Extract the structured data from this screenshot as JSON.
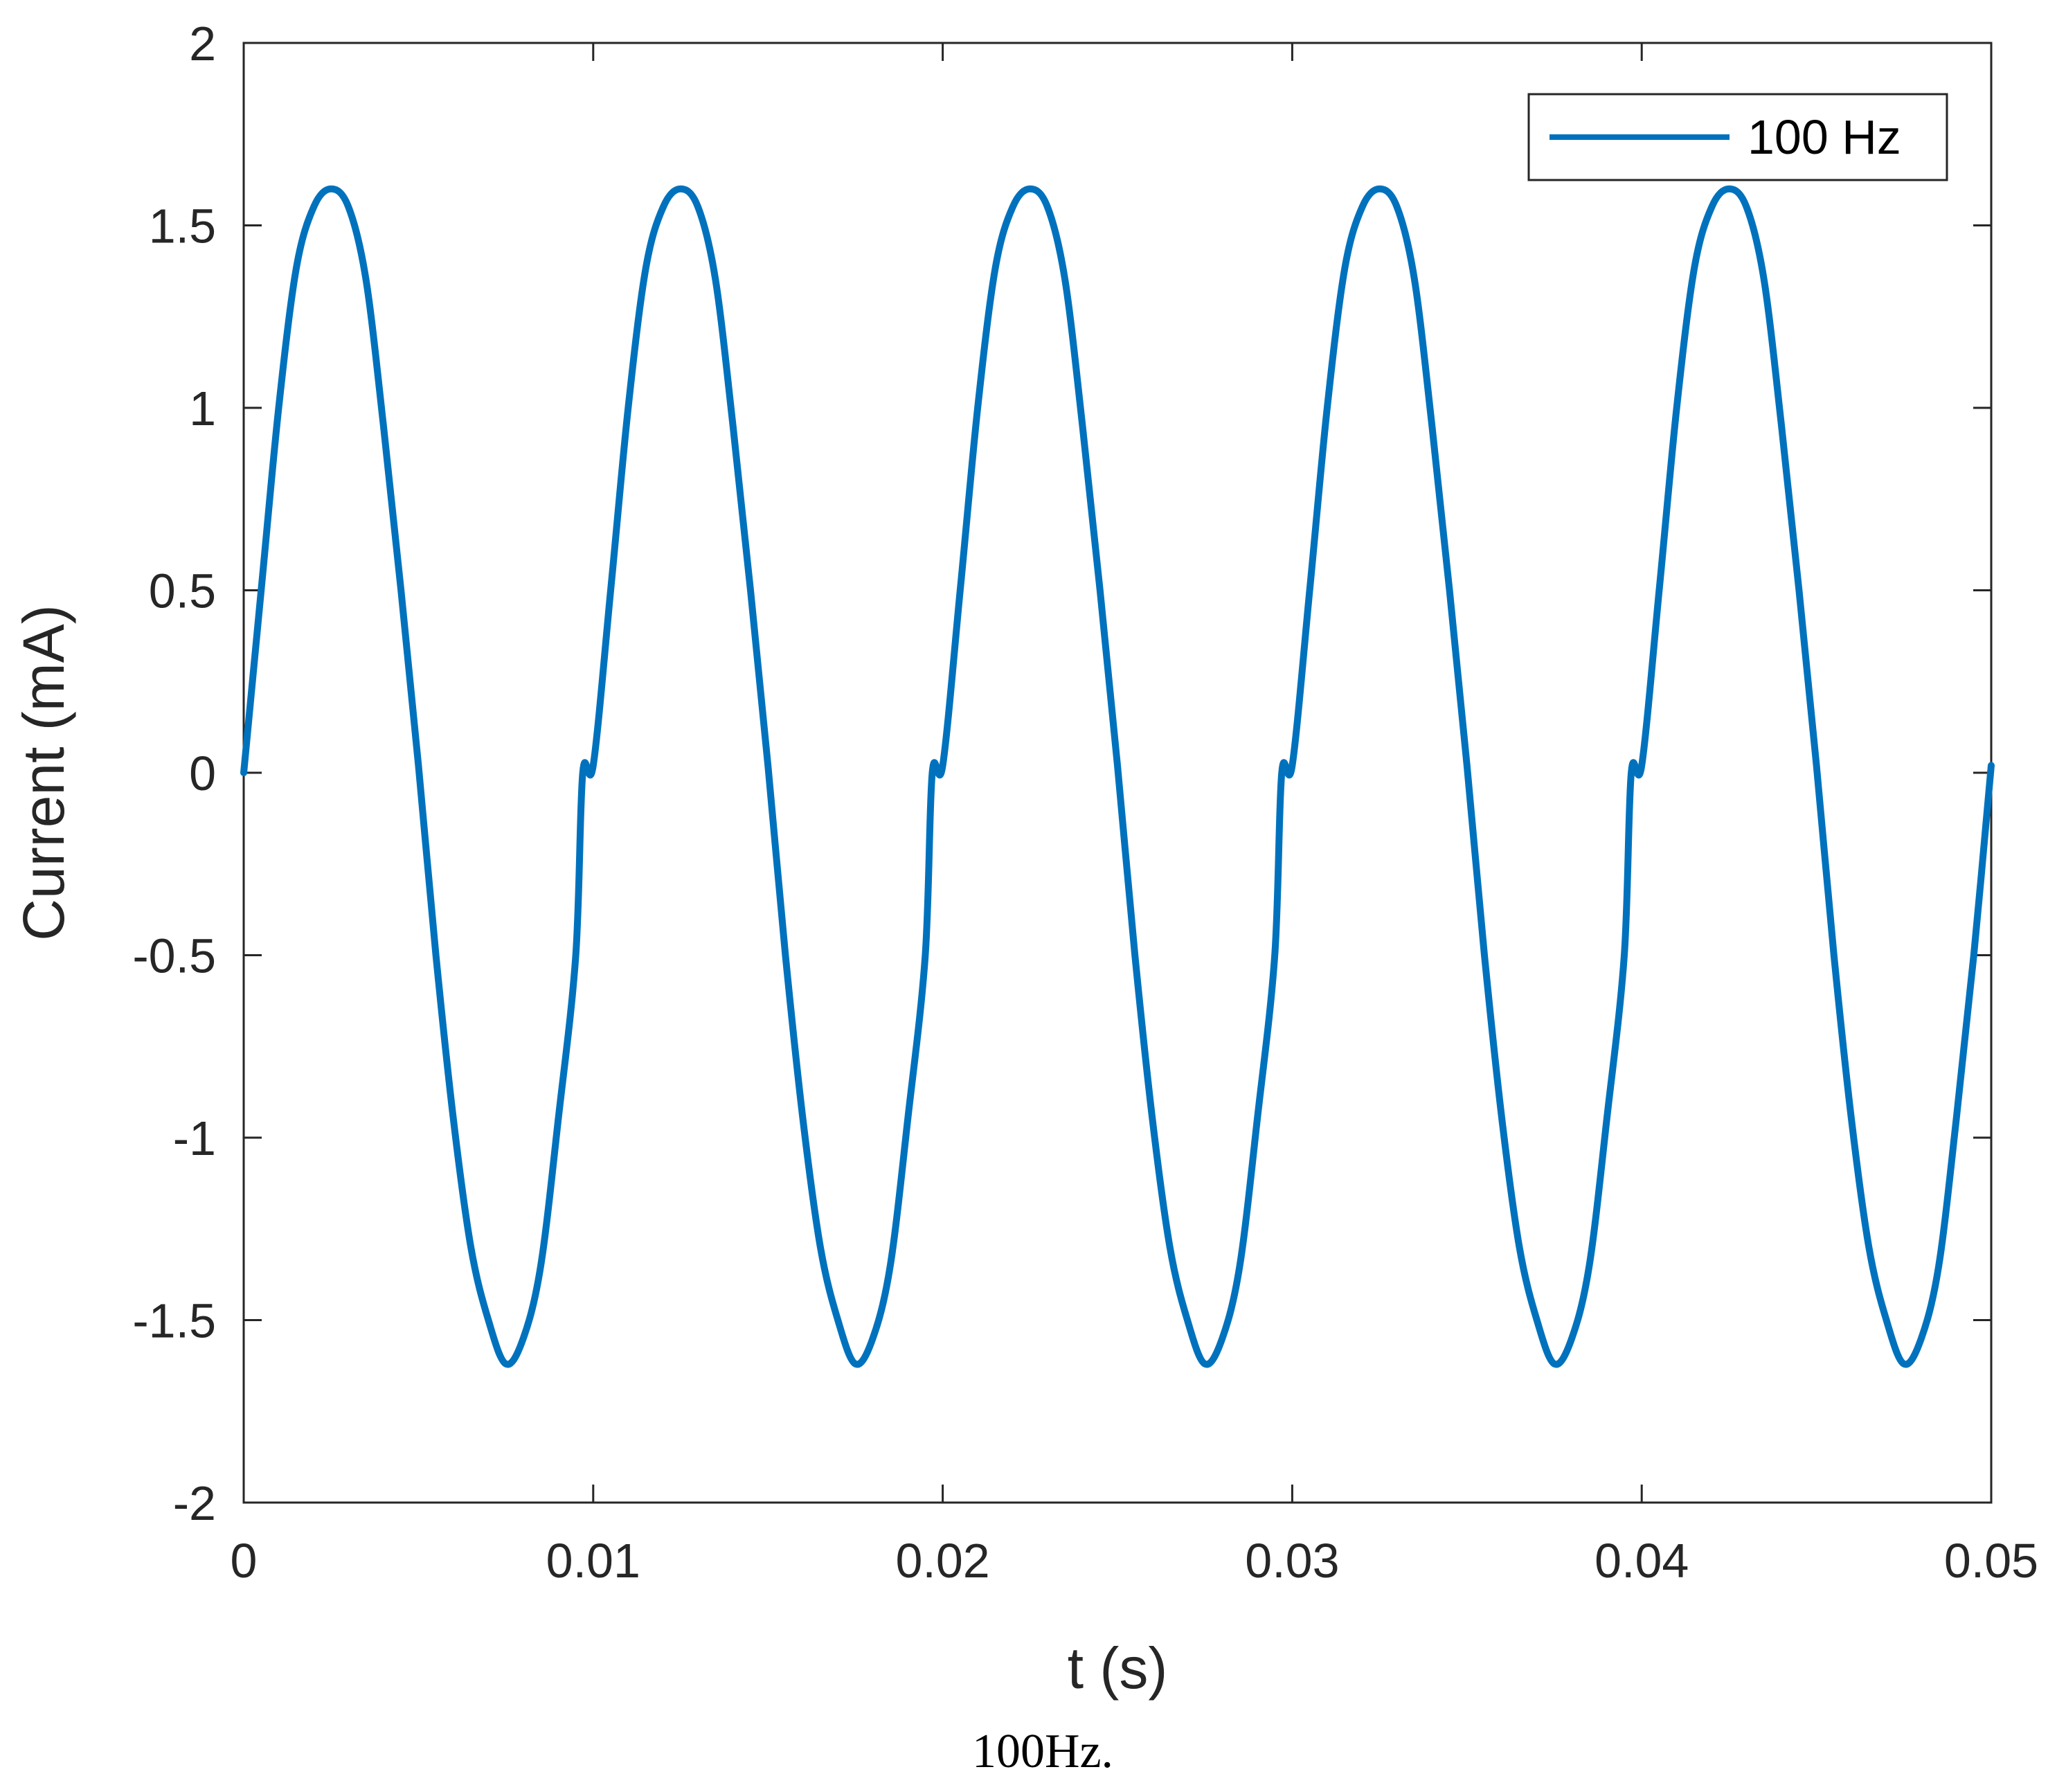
{
  "chart_data": {
    "type": "line",
    "xlabel": "t (s)",
    "ylabel": "Current (mA)",
    "xlim": [
      0,
      0.05
    ],
    "ylim": [
      -2,
      2
    ],
    "xticks": [
      0,
      0.01,
      0.02,
      0.03,
      0.04,
      0.05
    ],
    "xtick_labels": [
      "0",
      "0.01",
      "0.02",
      "0.03",
      "0.04",
      "0.05"
    ],
    "yticks": [
      -2,
      -1.5,
      -1,
      -0.5,
      0,
      0.5,
      1,
      1.5,
      2
    ],
    "ytick_labels": [
      "-2",
      "-1.5",
      "-1",
      "-0.5",
      "0",
      "0.5",
      "1",
      "1.5",
      "2"
    ],
    "grid": false,
    "legend_position": "top-right",
    "series": [
      {
        "name": "100 Hz",
        "color": "#0072BD",
        "x": [
          0,
          0.0005,
          0.001,
          0.0015,
          0.002,
          0.0025,
          0.003,
          0.0035,
          0.004,
          0.0045,
          0.005,
          0.0055,
          0.006,
          0.0065,
          0.007,
          0.0075,
          0.008,
          0.0085,
          0.009,
          0.0095,
          0.0097,
          0.01,
          0.0105,
          0.011,
          0.0115,
          0.012,
          0.0125,
          0.013,
          0.0135,
          0.014,
          0.0145,
          0.015,
          0.0155,
          0.016,
          0.0165,
          0.017,
          0.0175,
          0.018,
          0.0185,
          0.019,
          0.0195,
          0.0197,
          0.02,
          0.0205,
          0.021,
          0.0215,
          0.022,
          0.0225,
          0.023,
          0.0235,
          0.024,
          0.0245,
          0.025,
          0.0255,
          0.026,
          0.0265,
          0.027,
          0.0275,
          0.028,
          0.0285,
          0.029,
          0.0295,
          0.0297,
          0.03,
          0.0305,
          0.031,
          0.0315,
          0.032,
          0.0325,
          0.033,
          0.0335,
          0.034,
          0.0345,
          0.035,
          0.0355,
          0.036,
          0.0365,
          0.037,
          0.0375,
          0.038,
          0.0385,
          0.039,
          0.0395,
          0.0397,
          0.04,
          0.0405,
          0.041,
          0.0415,
          0.042,
          0.0425,
          0.043,
          0.0435,
          0.044,
          0.0445,
          0.045,
          0.0455,
          0.046,
          0.0465,
          0.047,
          0.0475,
          0.048,
          0.0485,
          0.049,
          0.0495,
          0.05
        ],
        "values": [
          0,
          0.5,
          1.0,
          1.38,
          1.55,
          1.6,
          1.55,
          1.35,
          0.95,
          0.5,
          0.02,
          -0.5,
          -0.95,
          -1.3,
          -1.5,
          -1.62,
          -1.55,
          -1.35,
          -0.95,
          -0.5,
          0,
          0.02,
          0.5,
          1.0,
          1.38,
          1.55,
          1.6,
          1.55,
          1.35,
          0.95,
          0.5,
          0.02,
          -0.5,
          -0.95,
          -1.3,
          -1.5,
          -1.62,
          -1.55,
          -1.35,
          -0.95,
          -0.5,
          0,
          0.02,
          0.5,
          1.0,
          1.38,
          1.55,
          1.6,
          1.55,
          1.35,
          0.95,
          0.5,
          0.02,
          -0.5,
          -0.95,
          -1.3,
          -1.5,
          -1.62,
          -1.55,
          -1.35,
          -0.95,
          -0.5,
          0,
          0.02,
          0.5,
          1.0,
          1.38,
          1.55,
          1.6,
          1.55,
          1.35,
          0.95,
          0.5,
          0.02,
          -0.5,
          -0.95,
          -1.3,
          -1.5,
          -1.62,
          -1.55,
          -1.35,
          -0.95,
          -0.5,
          0,
          0.02,
          0.5,
          1.0,
          1.38,
          1.55,
          1.6,
          1.55,
          1.35,
          0.95,
          0.5,
          0.02,
          -0.5,
          -0.95,
          -1.3,
          -1.5,
          -1.62,
          -1.55,
          -1.35,
          -0.95,
          -0.5,
          0.02
        ]
      }
    ]
  },
  "caption": "100Hz."
}
